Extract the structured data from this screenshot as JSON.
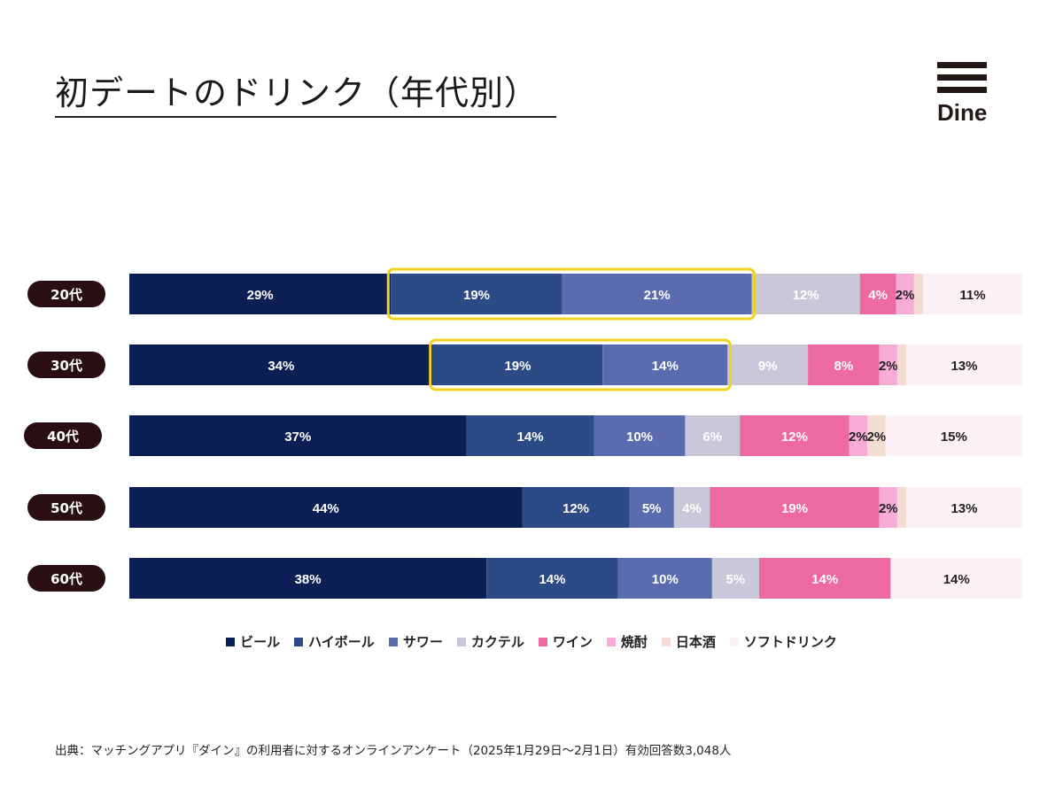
{
  "header": {
    "title": "初デートのドリンク（年代別）",
    "logo_text": "Dine"
  },
  "colors": {
    "ビール": "#0c1f55",
    "ハイボール": "#2b4a86",
    "サワー": "#5b6bb0",
    "カクテル": "#c9c7da",
    "ワイン": "#ec6aa0",
    "焼酎": "#f7acd8",
    "日本酒": "#f5dcd2",
    "ソフトドリンク": "#fdf1f8",
    "label_badge": "#2a0f12",
    "highlight": "#f2d21d"
  },
  "chart_data": {
    "type": "bar",
    "orientation": "horizontal-stacked",
    "title": "初デートのドリンク（年代別）",
    "categories": [
      "20代",
      "30代",
      "40代",
      "50代",
      "60代"
    ],
    "series": [
      {
        "name": "ビール",
        "values": [
          29,
          34,
          37,
          44,
          38
        ]
      },
      {
        "name": "ハイボール",
        "values": [
          19,
          19,
          14,
          12,
          14
        ]
      },
      {
        "name": "サワー",
        "values": [
          21,
          14,
          10,
          5,
          10
        ]
      },
      {
        "name": "カクテル",
        "values": [
          12,
          9,
          6,
          4,
          5
        ]
      },
      {
        "name": "ワイン",
        "values": [
          4,
          8,
          12,
          19,
          14
        ]
      },
      {
        "name": "焼酎",
        "values": [
          2,
          2,
          2,
          2,
          0
        ]
      },
      {
        "name": "日本酒",
        "values": [
          1,
          1,
          2,
          1,
          0
        ]
      },
      {
        "name": "ソフトドリンク",
        "values": [
          11,
          13,
          15,
          13,
          14
        ]
      }
    ],
    "data_labels": [
      [
        "29%",
        "19%",
        "21%",
        "12%",
        "4%",
        "2%",
        "",
        "11%"
      ],
      [
        "34%",
        "19%",
        "14%",
        "9%",
        "8%",
        "2%",
        "",
        "13%"
      ],
      [
        "37%",
        "14%",
        "10%",
        "6%",
        "12%",
        "2%",
        "2%",
        "15%"
      ],
      [
        "44%",
        "12%",
        "5%",
        "4%",
        "19%",
        "2%",
        "",
        "13%"
      ],
      [
        "38%",
        "14%",
        "10%",
        "5%",
        "14%",
        "",
        "",
        "14%"
      ]
    ],
    "highlights": [
      {
        "category": "20代",
        "series": [
          "ハイボール",
          "サワー"
        ]
      },
      {
        "category": "30代",
        "series": [
          "ハイボール",
          "サワー"
        ]
      }
    ],
    "legend": "bottom-center",
    "xlim": [
      0,
      100
    ]
  },
  "legend_items": [
    "ビール",
    "ハイボール",
    "サワー",
    "カクテル",
    "ワイン",
    "焼酎",
    "日本酒",
    "ソフトドリンク"
  ],
  "footer": {
    "source": "出典：マッチングアプリ『ダイン』の利用者に対するオンラインアンケート（2025年1月29日〜2月1日）有効回答数3,048人"
  }
}
